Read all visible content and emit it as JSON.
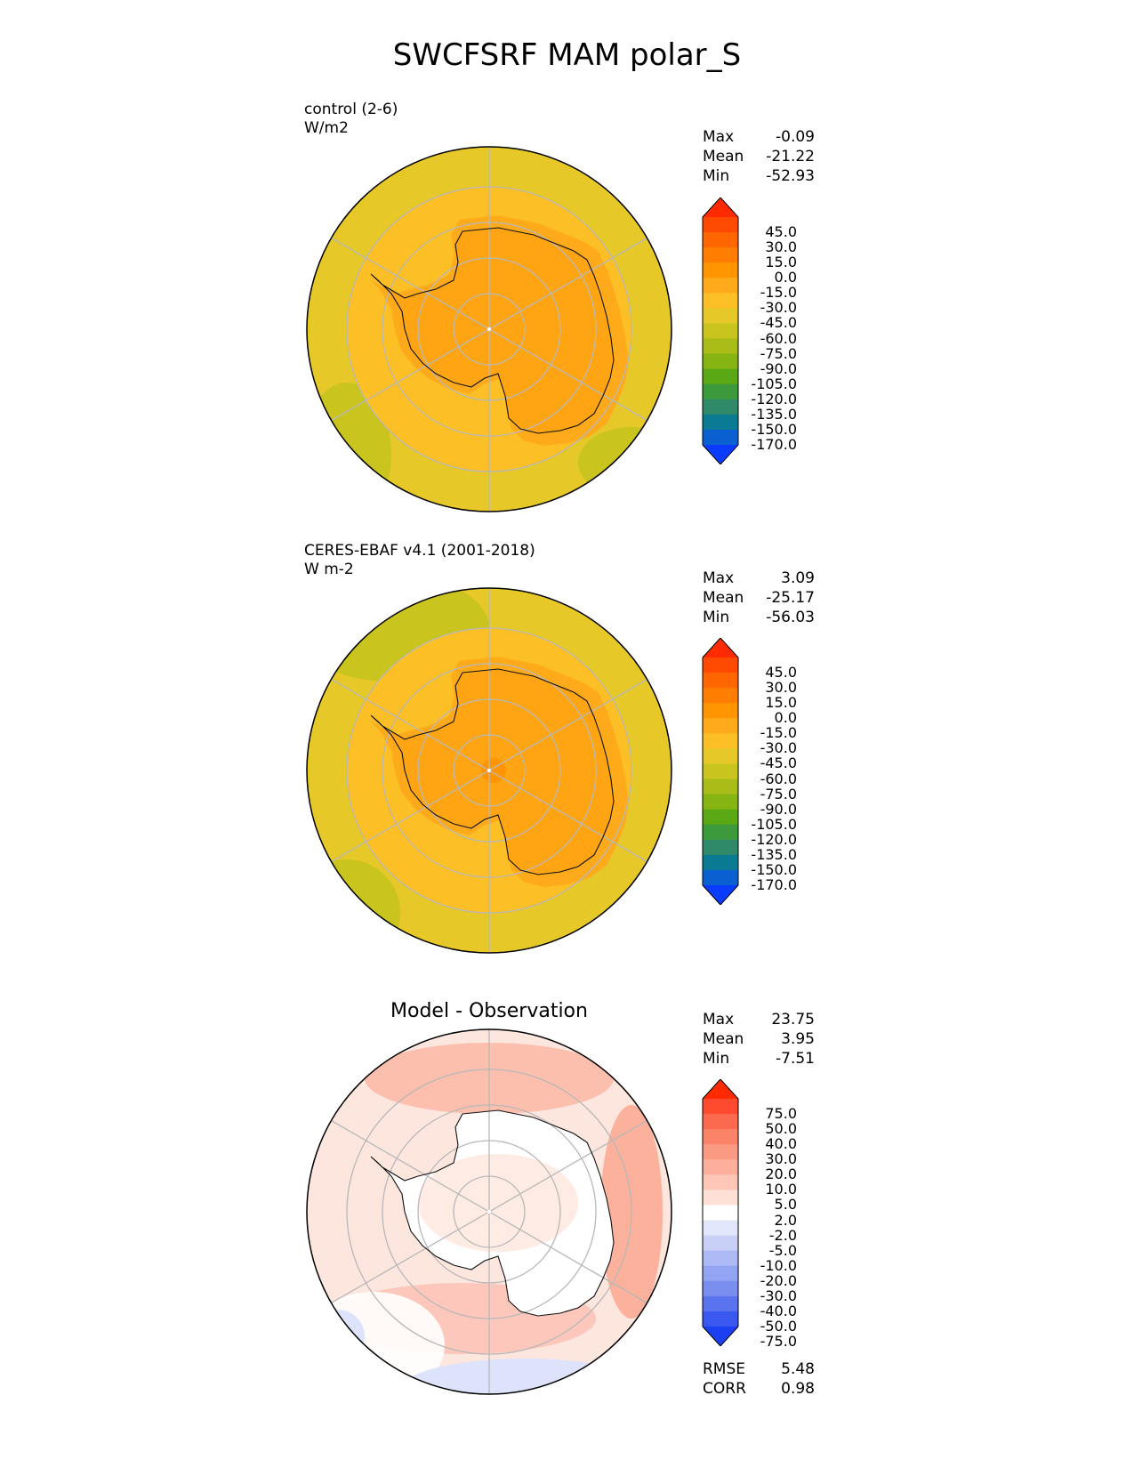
{
  "title": "SWCFSRF MAM polar_S",
  "panels": [
    {
      "label_line1": "control (2-6)",
      "label_line2": "W/m2",
      "stats": {
        "max_label": "Max",
        "max": "-0.09",
        "mean_label": "Mean",
        "mean": "-21.22",
        "min_label": "Min",
        "min": "-52.93"
      }
    },
    {
      "label_line1": "CERES-EBAF v4.1 (2001-2018)",
      "label_line2": "W m-2",
      "stats": {
        "max_label": "Max",
        "max": "3.09",
        "mean_label": "Mean",
        "mean": "-25.17",
        "min_label": "Min",
        "min": "-56.03"
      }
    },
    {
      "title": "Model - Observation",
      "stats": {
        "max_label": "Max",
        "max": "23.75",
        "mean_label": "Mean",
        "mean": "3.95",
        "min_label": "Min",
        "min": "-7.51"
      },
      "metrics": {
        "rmse_label": "RMSE",
        "rmse": "5.48",
        "corr_label": "CORR",
        "corr": "0.98"
      }
    }
  ],
  "chart_data": [
    {
      "type": "heatmap",
      "projection": "south-polar-stereographic",
      "title": "control (2-6)",
      "units": "W/m2",
      "colorbar_ticks": [
        "45.0",
        "30.0",
        "15.0",
        "0.0",
        "-15.0",
        "-30.0",
        "-45.0",
        "-60.0",
        "-75.0",
        "-90.0",
        "-105.0",
        "-120.0",
        "-135.0",
        "-150.0",
        "-170.0"
      ],
      "colorbar_colors": [
        "#ff2a00",
        "#ff4a00",
        "#ff6600",
        "#ff7d00",
        "#ff9500",
        "#ffaa1a",
        "#fcbf26",
        "#e6c928",
        "#c9c41e",
        "#a9bc17",
        "#86b412",
        "#5aa814",
        "#3c9a3c",
        "#2f8a6a",
        "#0b7b94",
        "#0a60d0",
        "#0a3cff"
      ],
      "values_description_ranges": {
        "antarctic_interior": [
          -30,
          -15
        ],
        "coastal_band": [
          -45,
          -30
        ],
        "open_ocean": [
          -60,
          -45
        ]
      }
    },
    {
      "type": "heatmap",
      "projection": "south-polar-stereographic",
      "title": "CERES-EBAF v4.1 (2001-2018)",
      "units": "W m-2",
      "colorbar_ticks": [
        "45.0",
        "30.0",
        "15.0",
        "0.0",
        "-15.0",
        "-30.0",
        "-45.0",
        "-60.0",
        "-75.0",
        "-90.0",
        "-105.0",
        "-120.0",
        "-135.0",
        "-150.0",
        "-170.0"
      ],
      "colorbar_colors": [
        "#ff2a00",
        "#ff4a00",
        "#ff6600",
        "#ff7d00",
        "#ff9500",
        "#ffaa1a",
        "#fcbf26",
        "#e6c928",
        "#c9c41e",
        "#a9bc17",
        "#86b412",
        "#5aa814",
        "#3c9a3c",
        "#2f8a6a",
        "#0b7b94",
        "#0a60d0",
        "#0a3cff"
      ]
    },
    {
      "type": "heatmap",
      "projection": "south-polar-stereographic",
      "title": "Model - Observation",
      "colorbar_ticks": [
        "75.0",
        "50.0",
        "40.0",
        "30.0",
        "20.0",
        "10.0",
        "5.0",
        "2.0",
        "-2.0",
        "-5.0",
        "-10.0",
        "-20.0",
        "-30.0",
        "-40.0",
        "-50.0",
        "-75.0"
      ],
      "colorbar_colors": [
        "#ff2a00",
        "#fe4a2e",
        "#fb6a4f",
        "#fa8368",
        "#fb9a82",
        "#fcb09b",
        "#fdc6b6",
        "#fee0d6",
        "#ffffff",
        "#e2e6fb",
        "#c8d0f8",
        "#adbaf5",
        "#93a4f2",
        "#7a8ef0",
        "#5a73ef",
        "#3a58ef",
        "#1a40f2"
      ]
    }
  ]
}
